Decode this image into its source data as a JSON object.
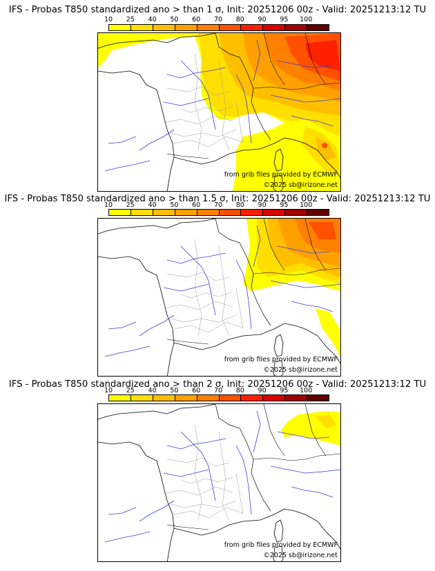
{
  "scale": {
    "labels": [
      "10",
      "25",
      "40",
      "50",
      "60",
      "70",
      "80",
      "90",
      "95",
      "100"
    ],
    "colors": [
      "#ffff00",
      "#ffdf00",
      "#ffbf00",
      "#ffa000",
      "#ff8000",
      "#ff5000",
      "#ff2000",
      "#d80000",
      "#a00000",
      "#600000"
    ]
  },
  "panels": [
    {
      "title": "IFS - Probas T850  standardized ano > than 1 σ, Init: 20251206 00z - Valid: 20251213:12 TU",
      "source": "from grib files provided by ECMWF",
      "copyright": "©2025 sb@irizone.net"
    },
    {
      "title": "IFS - Probas T850  standardized ano > than 1.5 σ, Init: 20251206 00z - Valid: 20251213:12 TU",
      "source": "from grib files provided by ECMWF",
      "copyright": "©2025 sb@irizone.net"
    },
    {
      "title": "IFS - Probas T850  standardized ano > than 2 σ, Init: 20251206 00z - Valid: 20251213:12 TU",
      "source": "from grib files provided by ECMWF",
      "copyright": "©2025 sb@irizone.net"
    }
  ]
}
